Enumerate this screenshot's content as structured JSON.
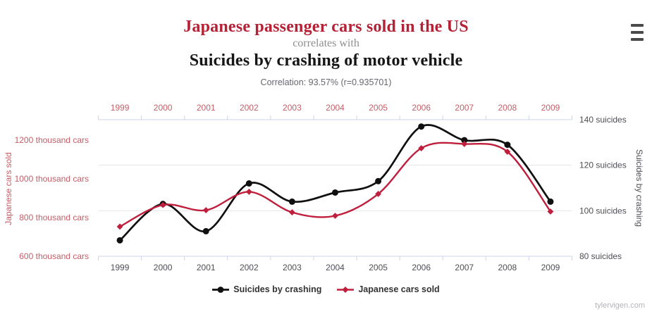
{
  "header": {
    "title_top": "Japanese passenger cars sold in the US",
    "connector": "correlates with",
    "title_bottom": "Suicides by crashing of motor vehicle",
    "correlation_label": "Correlation: 93.57% (r=0.935701)"
  },
  "footer": {
    "credit": "tylervigen.com"
  },
  "colors": {
    "title_red": "#b52135",
    "series_red": "#bf1e3c",
    "series_black": "#101010",
    "muted_red_label": "#c25f68",
    "axis_line": "#ccd6eb",
    "grid_line": "#e6e6e6",
    "dark_label": "#4e4e56",
    "legend_text": "#333333",
    "connector_gray": "#8e8e8e",
    "correlation_gray": "#666670",
    "credit_gray": "#b3b3bb",
    "menu_gray": "#4a4a4a",
    "title_black": "#161616"
  },
  "chart_data": {
    "type": "line",
    "categories": [
      "1999",
      "2000",
      "2001",
      "2002",
      "2003",
      "2004",
      "2005",
      "2006",
      "2007",
      "2008",
      "2009"
    ],
    "series": [
      {
        "name": "Suicides by crashing",
        "axis": "right",
        "color": "#101010",
        "marker": "circle",
        "line_width": 2.7,
        "values": [
          87,
          103,
          91,
          112,
          104,
          108,
          113,
          137,
          131,
          129,
          104
        ]
      },
      {
        "name": "Japanese cars sold",
        "axis": "left",
        "color": "#bf1e3c",
        "marker": "diamond",
        "line_width": 2.4,
        "values": [
          753,
          865,
          838,
          933,
          827,
          809,
          922,
          1158,
          1180,
          1140,
          831
        ]
      }
    ],
    "left_axis": {
      "title": "Japanese cars sold",
      "ticks": [
        600,
        800,
        1000,
        1200
      ],
      "tick_suffix": " thousand cars",
      "min": 600,
      "units_per_200px": 727
    },
    "right_axis": {
      "title": "Suicides by crashing",
      "ticks": [
        80,
        100,
        120,
        140
      ],
      "tick_suffix": " suicides",
      "min": 80,
      "max": 140,
      "grid_values": [
        100,
        120
      ]
    },
    "legend_position": "bottom-center",
    "grid": "horizontal-only"
  }
}
